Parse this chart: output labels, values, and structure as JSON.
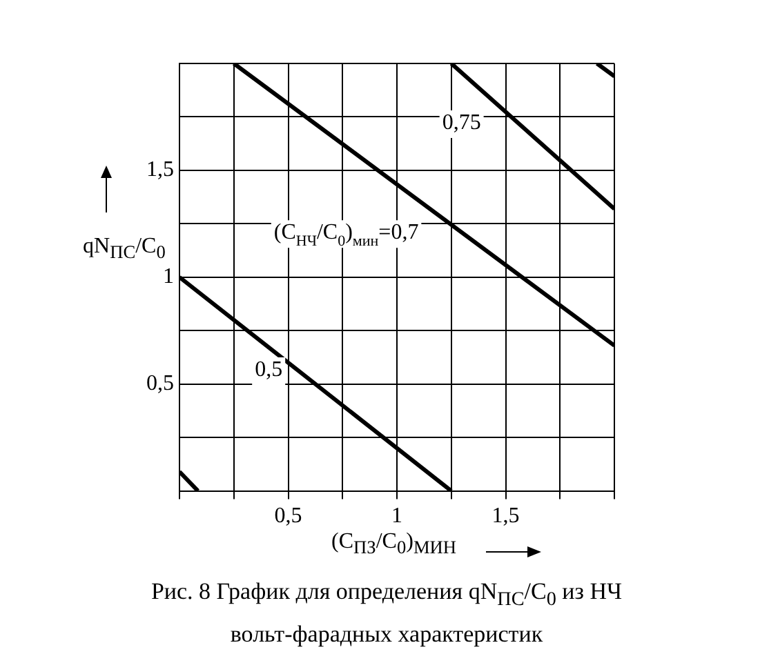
{
  "chart_data": {
    "type": "line",
    "title": "Рис. 8 График для определения qN$_{ПС}$/C$_{0}$ из НЧ вольт-фарадных характеристик",
    "xlabel": "(C$_{ПЗ}$/C$_{0}$)$_{МИН}$",
    "ylabel": "qN$_{ПС}$/C$_{0}$",
    "series": [
      {
        "name": "0,5",
        "color": "#000000",
        "x": [
          0,
          1.25
        ],
        "values": [
          1,
          0
        ]
      },
      {
        "name": "(C$_{НЧ}$/C$_{0}$)$_{мин}$=0,7",
        "color": "#000000",
        "x": [
          0.25,
          2
        ],
        "values": [
          2,
          0.68
        ]
      },
      {
        "name": "0,75",
        "color": "#000000",
        "x": [
          1.25,
          2
        ],
        "values": [
          2,
          1.32
        ]
      },
      {
        "color": "#000000",
        "x": [
          0,
          0.085
        ],
        "values": [
          0.09,
          0
        ]
      },
      {
        "color": "#000000",
        "x": [
          1.92,
          2
        ],
        "values": [
          2,
          1.94
        ]
      }
    ],
    "xlim": [
      0,
      2
    ],
    "ylim": [
      0,
      2
    ],
    "xticks": [
      {
        "value": 0,
        "label": null
      },
      {
        "value": 0.25,
        "label": null
      },
      {
        "value": 0.5,
        "label": "0,5"
      },
      {
        "value": 0.75,
        "label": null
      },
      {
        "value": 1,
        "label": "1"
      },
      {
        "value": 1.25,
        "label": null
      },
      {
        "value": 1.5,
        "label": "1,5"
      },
      {
        "value": 1.75,
        "label": null
      },
      {
        "value": 2,
        "label": null
      }
    ],
    "yticks": [
      {
        "value": 0,
        "label": null
      },
      {
        "value": 0.25,
        "label": null
      },
      {
        "value": 0.5,
        "label": "0,5"
      },
      {
        "value": 0.75,
        "label": null
      },
      {
        "value": 1,
        "label": "1"
      },
      {
        "value": 1.25,
        "label": null
      },
      {
        "value": 1.5,
        "label": "1,5"
      },
      {
        "value": 1.75,
        "label": null
      },
      {
        "value": 2,
        "label": null
      }
    ],
    "grid": true,
    "legend": false,
    "marker": "none",
    "line_style": "solid"
  }
}
